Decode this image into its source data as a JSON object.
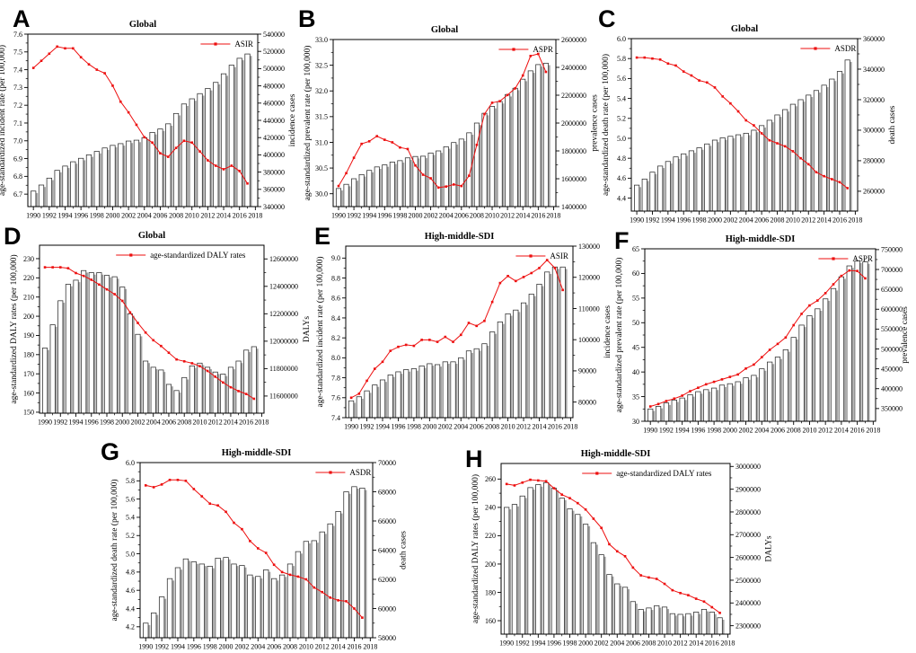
{
  "figure": {
    "background": "#ffffff",
    "line_color": "#ed0f0f",
    "bar_fill": "#ffffff",
    "bar_shadow": "#a6a6a6",
    "bar_stroke": "#2b2b2b",
    "axis_color": "#000000"
  },
  "x_years": [
    1990,
    1991,
    1992,
    1993,
    1994,
    1995,
    1996,
    1997,
    1998,
    1999,
    2000,
    2001,
    2002,
    2003,
    2004,
    2005,
    2006,
    2007,
    2008,
    2009,
    2010,
    2011,
    2012,
    2013,
    2014,
    2015,
    2016,
    2017
  ],
  "x_tick_labels": [
    "1990",
    "1992",
    "1994",
    "1996",
    "1998",
    "2000",
    "2002",
    "2004",
    "2006",
    "2008",
    "2010",
    "2012",
    "2014",
    "2016",
    "2018"
  ],
  "chart_data": [
    {
      "panel": "A",
      "type": "bar+line",
      "title": "Global",
      "legend": "ASIR",
      "ylabel_left": "age-standardized incident rate (per 100,000)",
      "ylabel_right": "incidence cases",
      "yticks_left": [
        "6.7",
        "6.8",
        "6.9",
        "7.0",
        "7.1",
        "7.2",
        "7.3",
        "7.4",
        "7.5",
        "7.6"
      ],
      "yticks_right": [
        "340000",
        "360000",
        "380000",
        "400000",
        "420000",
        "440000",
        "460000",
        "480000",
        "500000",
        "520000",
        "540000"
      ],
      "ylim_left": [
        6.63,
        7.6
      ],
      "ylim_right": [
        340000,
        540000
      ],
      "line_series": {
        "name": "ASIR",
        "values": [
          7.41,
          7.45,
          7.49,
          7.53,
          7.52,
          7.52,
          7.47,
          7.43,
          7.4,
          7.38,
          7.31,
          7.22,
          7.16,
          7.09,
          7.02,
          6.99,
          6.93,
          6.91,
          6.96,
          7.0,
          6.99,
          6.94,
          6.89,
          6.86,
          6.84,
          6.86,
          6.83,
          6.76
        ]
      },
      "bar_series": {
        "name": "incidence cases",
        "values": [
          358000,
          365000,
          373000,
          382000,
          387000,
          392000,
          396000,
          400000,
          404000,
          408000,
          411000,
          413000,
          416000,
          417000,
          420000,
          426000,
          430000,
          436000,
          448000,
          459000,
          465000,
          471000,
          477000,
          484000,
          494000,
          504000,
          512000,
          517000
        ]
      }
    },
    {
      "panel": "B",
      "type": "bar+line",
      "title": "Global",
      "legend": "ASPR",
      "ylabel_left": "age-standardized prevalent rate (per 100,000)",
      "ylabel_right": "prevalence cases",
      "yticks_left": [
        "30.0",
        "30.5",
        "31.0",
        "31.5",
        "32.0",
        "32.5",
        "33.0"
      ],
      "yticks_right": [
        "1400000",
        "1600000",
        "1800000",
        "2000000",
        "2200000",
        "2400000",
        "2600000"
      ],
      "ylim_left": [
        29.75,
        33.0
      ],
      "ylim_right": [
        1400000,
        2600000
      ],
      "line_series": {
        "name": "ASPR",
        "values": [
          30.15,
          30.4,
          30.7,
          30.97,
          31.02,
          31.12,
          31.05,
          31.0,
          30.9,
          30.87,
          30.55,
          30.37,
          30.3,
          30.12,
          30.14,
          30.18,
          30.15,
          30.35,
          30.95,
          31.55,
          31.77,
          31.8,
          31.92,
          32.05,
          32.3,
          32.68,
          32.72,
          32.37
        ]
      },
      "bar_series": {
        "name": "prevalence cases",
        "values": [
          1530000,
          1560000,
          1600000,
          1630000,
          1660000,
          1685000,
          1700000,
          1720000,
          1730000,
          1750000,
          1760000,
          1762000,
          1785000,
          1800000,
          1830000,
          1860000,
          1885000,
          1930000,
          2000000,
          2070000,
          2120000,
          2155000,
          2205000,
          2250000,
          2315000,
          2375000,
          2420000,
          2430000
        ]
      }
    },
    {
      "panel": "C",
      "type": "bar+line",
      "title": "Global",
      "legend": "ASDR",
      "ylabel_left": "age-standardized death rate (per 100,000)",
      "ylabel_right": "death cases",
      "yticks_left": [
        "4.4",
        "4.6",
        "4.8",
        "5.0",
        "5.2",
        "5.4",
        "5.6",
        "5.8",
        "6.0"
      ],
      "yticks_right": [
        "260000",
        "280000",
        "300000",
        "320000",
        "340000",
        "360000"
      ],
      "ylim_left": [
        4.27,
        6.0
      ],
      "ylim_right": [
        247000,
        360000
      ],
      "line_series": {
        "name": "ASDR",
        "values": [
          5.81,
          5.81,
          5.8,
          5.79,
          5.75,
          5.73,
          5.67,
          5.63,
          5.58,
          5.56,
          5.51,
          5.42,
          5.35,
          5.27,
          5.18,
          5.13,
          5.05,
          4.98,
          4.95,
          4.92,
          4.87,
          4.8,
          4.74,
          4.66,
          4.62,
          4.59,
          4.56,
          4.5
        ]
      },
      "bar_series": {
        "name": "death cases",
        "values": [
          264000,
          268000,
          272500,
          276500,
          279500,
          282500,
          284500,
          286500,
          288500,
          291000,
          293500,
          295000,
          296000,
          297000,
          298000,
          300000,
          303000,
          306500,
          310000,
          313500,
          317000,
          320000,
          323000,
          326000,
          329500,
          333500,
          338500,
          346000
        ]
      }
    },
    {
      "panel": "D",
      "type": "bar+line",
      "title": "Global",
      "legend": "age-standardized DALY rates",
      "ylabel_left": "age-standardized DALY rates (per 100,000)",
      "ylabel_right": "DALYs",
      "yticks_left": [
        "150",
        "160",
        "170",
        "180",
        "190",
        "200",
        "210",
        "220",
        "230"
      ],
      "yticks_right": [
        "11600000",
        "11800000",
        "12000000",
        "12200000",
        "12400000",
        "12600000"
      ],
      "ylim_left": [
        149.5,
        237
      ],
      "ylim_right": [
        11475000,
        12700000
      ],
      "line_series": {
        "name": "age-standardized DALY rates",
        "values": [
          225.5,
          225.5,
          225.5,
          225,
          222.5,
          221,
          219,
          216.5,
          214,
          211.5,
          208,
          202,
          196.5,
          191.5,
          187.5,
          184.5,
          181,
          177.5,
          176.5,
          175.5,
          174,
          171.5,
          168.5,
          165.5,
          163,
          161,
          159.5,
          157
        ]
      },
      "bar_series": {
        "name": "DALYs",
        "values": [
          11950000,
          12120000,
          12295000,
          12415000,
          12445000,
          12515000,
          12500000,
          12500000,
          12480000,
          12470000,
          12395000,
          12200000,
          12050000,
          11855000,
          11810000,
          11790000,
          11685000,
          11640000,
          11735000,
          11820000,
          11840000,
          11810000,
          11775000,
          11760000,
          11810000,
          11855000,
          11935000,
          11960000
        ]
      }
    },
    {
      "panel": "E",
      "type": "bar+line",
      "title": "High-middle-SDI",
      "legend": "ASIR",
      "ylabel_left": "age-standardized incident rate (per 100,000)",
      "ylabel_right": "incidence cases",
      "yticks_left": [
        "7.4",
        "7.6",
        "7.8",
        "8.0",
        "8.2",
        "8.4",
        "8.6",
        "8.8",
        "9.0"
      ],
      "yticks_right": [
        "80000",
        "90000",
        "100000",
        "110000",
        "120000",
        "130000"
      ],
      "ylim_left": [
        7.4,
        9.12
      ],
      "ylim_right": [
        75000,
        130000
      ],
      "line_series": {
        "name": "ASIR",
        "values": [
          7.6,
          7.64,
          7.77,
          7.89,
          7.96,
          8.07,
          8.11,
          8.13,
          8.12,
          8.18,
          8.18,
          8.16,
          8.21,
          8.16,
          8.23,
          8.35,
          8.32,
          8.37,
          8.56,
          8.75,
          8.82,
          8.77,
          8.81,
          8.85,
          8.9,
          8.98,
          8.9,
          8.68
        ]
      },
      "bar_series": {
        "name": "incidence cases",
        "values": [
          80400,
          81700,
          83600,
          85500,
          87100,
          88700,
          89700,
          90400,
          90700,
          91600,
          92300,
          92000,
          92900,
          92900,
          94200,
          96400,
          97100,
          98700,
          102500,
          105700,
          108300,
          109500,
          111800,
          114600,
          117800,
          121700,
          123300,
          123300
        ]
      }
    },
    {
      "panel": "F",
      "type": "bar+line",
      "title": "High-middle-SDI",
      "legend": "ASPR",
      "ylabel_left": "age-standardized prevalent rate (per 100,000)",
      "ylabel_right": "prevalence cases",
      "yticks_left": [
        "30",
        "35",
        "40",
        "45",
        "50",
        "55",
        "60",
        "65"
      ],
      "yticks_right": [
        "350000",
        "400000",
        "450000",
        "500000",
        "550000",
        "600000",
        "650000",
        "700000",
        "750000"
      ],
      "ylim_left": [
        30,
        65
      ],
      "ylim_right": [
        318000,
        752000
      ],
      "line_series": {
        "name": "ASPR",
        "values": [
          33.0,
          33.5,
          34.1,
          34.6,
          35.2,
          36.1,
          36.8,
          37.5,
          38.0,
          38.5,
          39.0,
          39.5,
          40.7,
          41.5,
          43.0,
          44.5,
          45.7,
          47.0,
          49.5,
          51.8,
          53.5,
          54.5,
          56.0,
          57.8,
          59.5,
          60.6,
          60.5,
          59.0
        ]
      },
      "bar_series": {
        "name": "prevalence cases",
        "values": [
          349000,
          355500,
          364000,
          371500,
          376500,
          385000,
          392500,
          397500,
          401500,
          409000,
          412500,
          417500,
          427500,
          433500,
          450000,
          467000,
          479500,
          498000,
          529000,
          560000,
          583500,
          601000,
          626000,
          652000,
          681500,
          709000,
          721500,
          719000
        ]
      }
    },
    {
      "panel": "G",
      "type": "bar+line",
      "title": "High-middle-SDI",
      "legend": "ASDR",
      "ylabel_left": "age-standardized death rate (per 100,000)",
      "ylabel_right": "death cases",
      "yticks_left": [
        "4.2",
        "4.4",
        "4.6",
        "4.8",
        "5.0",
        "5.2",
        "5.4",
        "5.6",
        "5.8",
        "6.0"
      ],
      "yticks_right": [
        "58000",
        "60000",
        "62000",
        "64000",
        "66000",
        "68000",
        "70000"
      ],
      "ylim_left": [
        4.08,
        6.0
      ],
      "ylim_right": [
        58000,
        70000
      ],
      "line_series": {
        "name": "ASDR",
        "values": [
          5.75,
          5.73,
          5.76,
          5.81,
          5.81,
          5.8,
          5.71,
          5.63,
          5.55,
          5.53,
          5.46,
          5.34,
          5.27,
          5.14,
          5.06,
          5.01,
          4.88,
          4.8,
          4.77,
          4.75,
          4.72,
          4.63,
          4.58,
          4.52,
          4.49,
          4.48,
          4.4,
          4.3
        ]
      },
      "bar_series": {
        "name": "death cases",
        "values": [
          59000,
          59700,
          60800,
          62050,
          62800,
          63400,
          63200,
          63050,
          62900,
          63450,
          63500,
          63050,
          62950,
          62300,
          62200,
          62650,
          62050,
          62300,
          63050,
          63900,
          64600,
          64650,
          65250,
          65800,
          66650,
          68000,
          68350,
          68250
        ]
      }
    },
    {
      "panel": "H",
      "type": "bar+line",
      "title": "High-middle-SDI",
      "legend": "age-standardized DALY rates",
      "ylabel_left": "age-standardized DALY rates (per 100,000)",
      "ylabel_right": "DALYs",
      "yticks_left": [
        "160",
        "180",
        "200",
        "220",
        "240",
        "260"
      ],
      "yticks_right": [
        "2300000",
        "2400000",
        "2500000",
        "2600000",
        "2700000",
        "2800000",
        "2900000",
        "3000000"
      ],
      "ylim_left": [
        150.5,
        271
      ],
      "ylim_right": [
        2263000,
        3013000
      ],
      "line_series": {
        "name": "age-standardized DALY rates",
        "values": [
          256.5,
          255.5,
          257.5,
          259.5,
          259,
          258.5,
          253.5,
          249,
          246.5,
          243,
          238.5,
          232,
          225.5,
          214,
          209,
          205.5,
          197.5,
          192,
          190.5,
          189.5,
          186,
          181.5,
          179.5,
          178,
          175.5,
          173.5,
          169.5,
          165.5
        ]
      },
      "bar_series": {
        "name": "DALYs",
        "values": [
          2820000,
          2833000,
          2870000,
          2907000,
          2920000,
          2929000,
          2904000,
          2861000,
          2814000,
          2789000,
          2746000,
          2665000,
          2612000,
          2525000,
          2484000,
          2469000,
          2406000,
          2372000,
          2378000,
          2388000,
          2382000,
          2353000,
          2350000,
          2353000,
          2360000,
          2372000,
          2360000,
          2335000
        ]
      }
    }
  ]
}
